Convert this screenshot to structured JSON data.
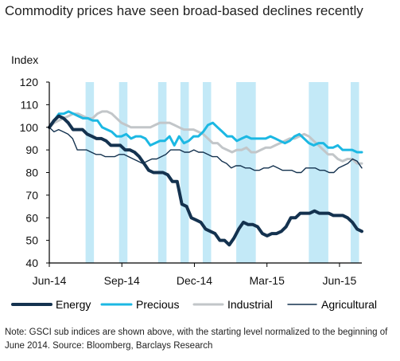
{
  "title": "Commodity prices have seen broad-based declines recently",
  "note": "Note: GSCI sub indices are shown above, with the starting level normalized to the beginning of June 2014. Source: Bloomberg, Barclays Research",
  "colors": {
    "energy": "#14324f",
    "precious": "#1cb8e3",
    "industrial": "#c2c6c9",
    "agricultural": "#14324f",
    "shading": "#c3e9f7",
    "axis": "#000000"
  },
  "chart_data": {
    "type": "line",
    "title": "Commodity prices have seen broad-based declines recently",
    "ylabel": "Index",
    "xlabel": "",
    "ylim": [
      40,
      120
    ],
    "yticks": [
      40,
      50,
      60,
      70,
      80,
      90,
      100,
      110,
      120
    ],
    "x_tick_labels": [
      "Jun-14",
      "Sep-14",
      "Dec-14",
      "Mar-15",
      "Jun-15"
    ],
    "x_tick_weeks": [
      0,
      13,
      26,
      39,
      52
    ],
    "weeks_total": 56,
    "shaded_week_ranges": [
      [
        6.5,
        8
      ],
      [
        12.5,
        14
      ],
      [
        19.5,
        21
      ],
      [
        23.5,
        25
      ],
      [
        27.5,
        29
      ],
      [
        33.5,
        37
      ],
      [
        46.5,
        50
      ],
      [
        54,
        55.5
      ]
    ],
    "legend_position": "bottom",
    "series": [
      {
        "name": "Energy",
        "key": "energy",
        "line_width": 4,
        "values": [
          100,
          103,
          105,
          104,
          102,
          99,
          99,
          99,
          97,
          96,
          95,
          95,
          94,
          92,
          92,
          92,
          90,
          90,
          89,
          87,
          84,
          81,
          80,
          80,
          80,
          79,
          76,
          76,
          66,
          65,
          60,
          59,
          58,
          55,
          54,
          53,
          50,
          50,
          48,
          51,
          55,
          58,
          57,
          57,
          56,
          53,
          52,
          53,
          53,
          54,
          56,
          60,
          60,
          62,
          62,
          62,
          63,
          62,
          62,
          62,
          61,
          61,
          61,
          60,
          58,
          55,
          54
        ]
      },
      {
        "name": "Precious",
        "key": "precious",
        "line_width": 3,
        "values": [
          100,
          103,
          106,
          106,
          107,
          106,
          105,
          104,
          104,
          103,
          103,
          100,
          99,
          98,
          96,
          96,
          97,
          95,
          96,
          96,
          95,
          92,
          93,
          94,
          94,
          96,
          92,
          96,
          93,
          94,
          96,
          96,
          98,
          101,
          102,
          100,
          98,
          96,
          96,
          94,
          95,
          96,
          95,
          95,
          95,
          95,
          96,
          95,
          94,
          93,
          94,
          96,
          97,
          95,
          93,
          92,
          93,
          93,
          91,
          91,
          92,
          90,
          90,
          90,
          89,
          89
        ]
      },
      {
        "name": "Industrial",
        "key": "industrial",
        "line_width": 3,
        "values": [
          100,
          102,
          103,
          104,
          105,
          106,
          106,
          105,
          104,
          104,
          106,
          107,
          107,
          106,
          104,
          102,
          101,
          100,
          100,
          100,
          100,
          100,
          101,
          102,
          102,
          102,
          101,
          100,
          99,
          99,
          99,
          98,
          97,
          95,
          93,
          93,
          91,
          90,
          89,
          90,
          90,
          91,
          89,
          89,
          90,
          91,
          91,
          92,
          93,
          94,
          95,
          95,
          96,
          97,
          96,
          94,
          92,
          90,
          88,
          88,
          86,
          85,
          86,
          86,
          84,
          84
        ]
      },
      {
        "name": "Agricultural",
        "key": "agricultural",
        "line_width": 1.4,
        "values": [
          100,
          98,
          99,
          98,
          97,
          95,
          90,
          90,
          90,
          89,
          88,
          88,
          87,
          87,
          87,
          88,
          88,
          87,
          86,
          85,
          84,
          85,
          86,
          86,
          87,
          88,
          90,
          90,
          90,
          89,
          89,
          90,
          89,
          89,
          88,
          87,
          87,
          85,
          84,
          82,
          83,
          83,
          82,
          82,
          81,
          81,
          82,
          82,
          83,
          82,
          81,
          81,
          81,
          80,
          80,
          82,
          82,
          82,
          81,
          81,
          80,
          80,
          82,
          83,
          84,
          86,
          85,
          82
        ]
      }
    ]
  }
}
